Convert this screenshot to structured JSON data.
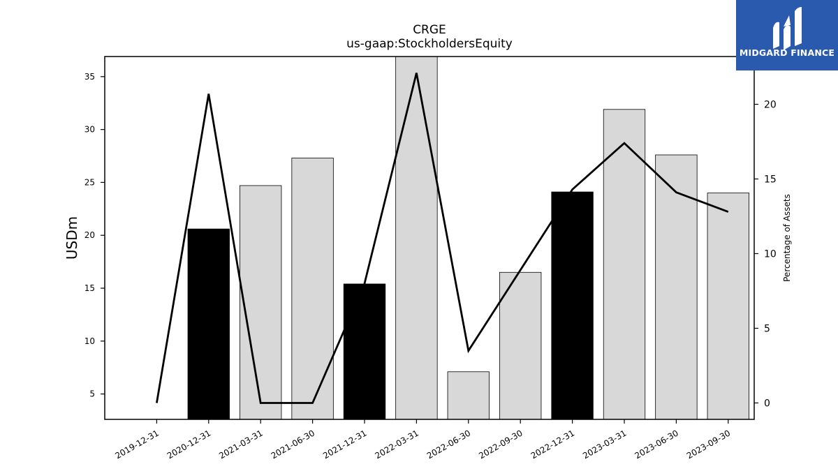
{
  "chart_data": {
    "type": "bar",
    "title": "CRGE",
    "subtitle": "us-gaap:StockholdersEquity",
    "ylabel": "USDm",
    "y2label": "Percentage of Assets",
    "categories": [
      "2019-12-31",
      "2020-12-31",
      "2021-03-31",
      "2021-06-30",
      "2021-12-31",
      "2022-03-31",
      "2022-06-30",
      "2022-09-30",
      "2022-12-31",
      "2023-03-31",
      "2023-06-30",
      "2023-09-30"
    ],
    "series": [
      {
        "values": [
          null,
          20.6,
          24.7,
          27.3,
          15.4,
          37.5,
          7.1,
          16.5,
          24.1,
          31.9,
          27.6,
          24.0
        ],
        "highlight": [
          false,
          true,
          false,
          false,
          true,
          false,
          false,
          false,
          true,
          false,
          false,
          false
        ],
        "axis": "left"
      },
      {
        "values": [
          0.0,
          20.7,
          0.0,
          0.0,
          8.0,
          22.1,
          3.5,
          8.9,
          14.3,
          17.4,
          14.1,
          12.8
        ],
        "axis": "right"
      }
    ],
    "ylim": [
      2.6,
      36.9
    ],
    "yticks": [
      5,
      10,
      15,
      20,
      25,
      30,
      35
    ],
    "y2lim": [
      -1.1,
      23.2
    ],
    "y2ticks": [
      0,
      5,
      10,
      15,
      20
    ],
    "colors": {
      "bar": "#d8d8d8",
      "bar_highlight": "#000000",
      "bar_edge": "#000000",
      "line": "#000000"
    },
    "grid": false
  },
  "logo": {
    "text": "MIDGARD FINANCE"
  }
}
